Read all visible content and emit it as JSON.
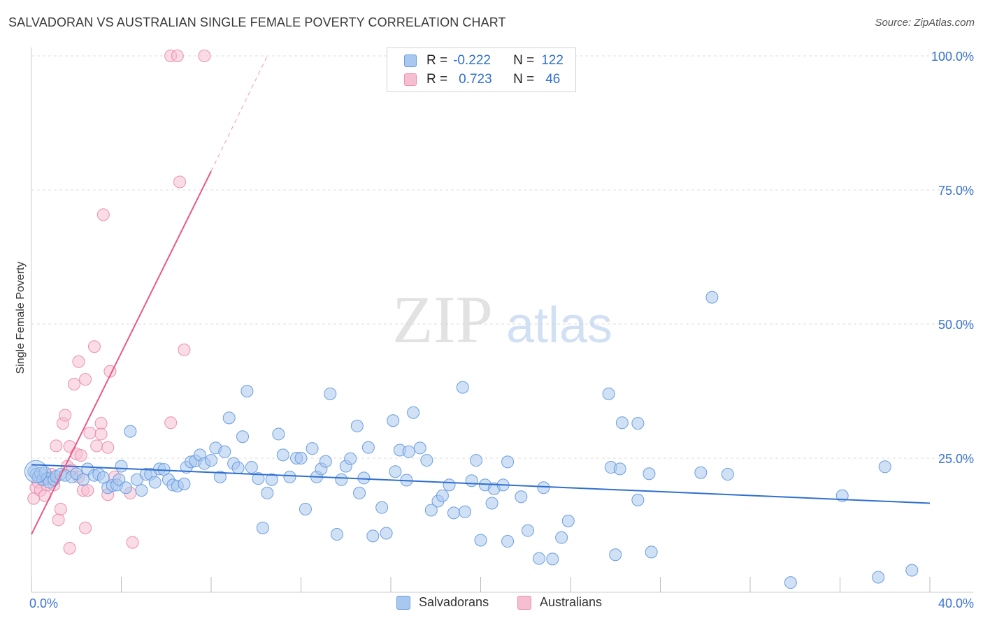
{
  "title": "SALVADORAN VS AUSTRALIAN SINGLE FEMALE POVERTY CORRELATION CHART",
  "source": "Source: ZipAtlas.com",
  "watermark": {
    "zip": "ZIP",
    "atlas": "atlas"
  },
  "legend": {
    "rows": [
      {
        "r_label": "R =",
        "r_value": "-0.222",
        "n_label": "N =",
        "n_value": "122"
      },
      {
        "r_label": "R =",
        "r_value": "0.723",
        "n_label": "N =",
        "n_value": "46"
      }
    ]
  },
  "bottom_legend": [
    "Salvadorans",
    "Australians"
  ],
  "colors": {
    "blue_fill": "#a9c8ef",
    "blue_stroke": "#6b9ee0",
    "blue_line": "#2f6fd0",
    "pink_fill": "#f6bfd1",
    "pink_stroke": "#ec8fb0",
    "pink_line": "#e8588a",
    "axis_text": "#3a73cf",
    "grid": "#dddddd"
  },
  "chart_data": {
    "type": "scatter",
    "title": "SALVADORAN VS AUSTRALIAN SINGLE FEMALE POVERTY CORRELATION CHART",
    "xlabel": "",
    "ylabel": "Single Female Poverty",
    "xlim": [
      0,
      40
    ],
    "ylim": [
      0,
      100
    ],
    "x_tick_labels": [
      "0.0%",
      "40.0%"
    ],
    "y_tick_labels": [
      "25.0%",
      "50.0%",
      "75.0%",
      "100.0%"
    ],
    "y_ticks": [
      25,
      50,
      75,
      100
    ],
    "series": [
      {
        "name": "Salvadorans",
        "color": "blue",
        "r": -0.222,
        "n": 122,
        "trend": {
          "x0": 0,
          "y0": 23.8,
          "x1": 40,
          "y1": 16.6
        },
        "points": [
          [
            0.1,
            22.5
          ],
          [
            0.2,
            22.0
          ],
          [
            0.3,
            21.5
          ],
          [
            0.4,
            22.2
          ],
          [
            0.5,
            21.0
          ],
          [
            0.6,
            22.3
          ],
          [
            0.7,
            21.2
          ],
          [
            0.8,
            20.5
          ],
          [
            1.0,
            21.0
          ],
          [
            1.1,
            21.6
          ],
          [
            1.3,
            22.0
          ],
          [
            1.5,
            21.8
          ],
          [
            1.8,
            21.5
          ],
          [
            2.0,
            22.1
          ],
          [
            2.3,
            21.0
          ],
          [
            2.5,
            23.0
          ],
          [
            2.8,
            21.8
          ],
          [
            3.0,
            22.0
          ],
          [
            3.2,
            21.4
          ],
          [
            3.4,
            19.5
          ],
          [
            3.6,
            19.9
          ],
          [
            3.8,
            20.0
          ],
          [
            3.9,
            21.0
          ],
          [
            4.0,
            23.5
          ],
          [
            4.2,
            19.5
          ],
          [
            4.4,
            30.0
          ],
          [
            4.7,
            21.0
          ],
          [
            4.9,
            19.0
          ],
          [
            5.1,
            22.0
          ],
          [
            5.3,
            22.0
          ],
          [
            5.5,
            20.5
          ],
          [
            5.7,
            23.0
          ],
          [
            5.9,
            22.9
          ],
          [
            6.1,
            21.0
          ],
          [
            6.3,
            20.0
          ],
          [
            6.5,
            19.8
          ],
          [
            6.8,
            20.2
          ],
          [
            6.9,
            23.3
          ],
          [
            7.1,
            24.3
          ],
          [
            7.3,
            24.5
          ],
          [
            7.5,
            25.6
          ],
          [
            7.7,
            24.0
          ],
          [
            8.0,
            24.6
          ],
          [
            8.2,
            26.9
          ],
          [
            8.4,
            21.5
          ],
          [
            8.6,
            26.2
          ],
          [
            8.8,
            32.5
          ],
          [
            9.0,
            24.0
          ],
          [
            9.2,
            23.2
          ],
          [
            9.4,
            29.0
          ],
          [
            9.6,
            37.5
          ],
          [
            9.8,
            23.3
          ],
          [
            10.1,
            21.2
          ],
          [
            10.3,
            12.0
          ],
          [
            10.5,
            18.5
          ],
          [
            10.7,
            21.0
          ],
          [
            11.0,
            29.5
          ],
          [
            11.2,
            25.6
          ],
          [
            11.5,
            21.5
          ],
          [
            11.8,
            25.0
          ],
          [
            12.0,
            25.0
          ],
          [
            12.2,
            15.5
          ],
          [
            12.5,
            26.8
          ],
          [
            12.7,
            21.5
          ],
          [
            12.9,
            23.0
          ],
          [
            13.1,
            24.4
          ],
          [
            13.3,
            37.0
          ],
          [
            13.6,
            10.8
          ],
          [
            13.8,
            21.0
          ],
          [
            14.0,
            23.5
          ],
          [
            14.2,
            24.9
          ],
          [
            14.5,
            31.0
          ],
          [
            14.6,
            18.5
          ],
          [
            14.8,
            21.3
          ],
          [
            15.0,
            27.0
          ],
          [
            15.2,
            10.5
          ],
          [
            15.6,
            15.8
          ],
          [
            15.8,
            11.0
          ],
          [
            16.1,
            32.0
          ],
          [
            16.2,
            22.5
          ],
          [
            16.4,
            26.5
          ],
          [
            16.7,
            20.9
          ],
          [
            16.8,
            26.2
          ],
          [
            17.0,
            33.5
          ],
          [
            17.3,
            26.9
          ],
          [
            17.6,
            24.6
          ],
          [
            17.8,
            15.3
          ],
          [
            18.1,
            17.0
          ],
          [
            18.3,
            18.0
          ],
          [
            18.6,
            20.0
          ],
          [
            18.8,
            14.8
          ],
          [
            19.2,
            38.2
          ],
          [
            19.3,
            15.0
          ],
          [
            19.6,
            20.8
          ],
          [
            19.8,
            24.6
          ],
          [
            20.0,
            9.7
          ],
          [
            20.2,
            20.0
          ],
          [
            20.5,
            16.6
          ],
          [
            20.6,
            19.3
          ],
          [
            21.0,
            20.0
          ],
          [
            21.2,
            24.3
          ],
          [
            21.2,
            9.5
          ],
          [
            21.8,
            17.8
          ],
          [
            22.1,
            11.5
          ],
          [
            22.6,
            6.3
          ],
          [
            22.8,
            19.5
          ],
          [
            23.2,
            6.2
          ],
          [
            23.6,
            10.2
          ],
          [
            23.9,
            13.3
          ],
          [
            25.7,
            37.0
          ],
          [
            25.8,
            23.3
          ],
          [
            26.2,
            23.0
          ],
          [
            26.3,
            31.6
          ],
          [
            26.0,
            7.0
          ],
          [
            27.0,
            31.5
          ],
          [
            27.0,
            17.2
          ],
          [
            27.5,
            22.1
          ],
          [
            27.6,
            7.5
          ],
          [
            29.8,
            22.3
          ],
          [
            30.3,
            55.0
          ],
          [
            31.0,
            22.0
          ],
          [
            33.8,
            1.8
          ],
          [
            36.1,
            18.0
          ],
          [
            37.7,
            2.8
          ],
          [
            38.0,
            23.4
          ],
          [
            39.2,
            4.1
          ]
        ]
      },
      {
        "name": "Australians",
        "color": "pink",
        "r": 0.723,
        "n": 46,
        "trend": {
          "x0": 0,
          "y0": 10.8,
          "x1": 8.0,
          "y1": 78.5
        },
        "trend_extension": {
          "x0": 8.0,
          "y0": 78.5,
          "x1": 10.5,
          "y1": 100
        },
        "points": [
          [
            0.1,
            17.5
          ],
          [
            0.2,
            19.5
          ],
          [
            0.3,
            20.5
          ],
          [
            0.4,
            19.0
          ],
          [
            0.5,
            21.0
          ],
          [
            0.6,
            18.0
          ],
          [
            0.7,
            20.0
          ],
          [
            0.8,
            21.5
          ],
          [
            0.9,
            22.0
          ],
          [
            1.0,
            20.0
          ],
          [
            1.1,
            27.3
          ],
          [
            1.2,
            13.5
          ],
          [
            1.3,
            15.5
          ],
          [
            1.4,
            31.5
          ],
          [
            1.5,
            33.0
          ],
          [
            1.6,
            23.5
          ],
          [
            1.7,
            8.2
          ],
          [
            1.7,
            27.2
          ],
          [
            1.8,
            22.8
          ],
          [
            1.9,
            38.8
          ],
          [
            2.0,
            25.8
          ],
          [
            2.1,
            21.5
          ],
          [
            2.1,
            43.0
          ],
          [
            2.2,
            25.5
          ],
          [
            2.3,
            19.0
          ],
          [
            2.4,
            39.7
          ],
          [
            2.4,
            12.0
          ],
          [
            2.5,
            19.0
          ],
          [
            2.6,
            29.7
          ],
          [
            2.8,
            45.8
          ],
          [
            2.9,
            27.3
          ],
          [
            3.1,
            31.5
          ],
          [
            3.1,
            29.5
          ],
          [
            3.2,
            70.4
          ],
          [
            3.4,
            27.0
          ],
          [
            3.4,
            18.2
          ],
          [
            3.5,
            41.2
          ],
          [
            3.7,
            21.5
          ],
          [
            4.5,
            9.3
          ],
          [
            6.2,
            31.6
          ],
          [
            6.2,
            100
          ],
          [
            6.5,
            100
          ],
          [
            6.6,
            76.5
          ],
          [
            6.8,
            45.2
          ],
          [
            7.7,
            100
          ],
          [
            4.4,
            18.5
          ]
        ]
      }
    ]
  }
}
